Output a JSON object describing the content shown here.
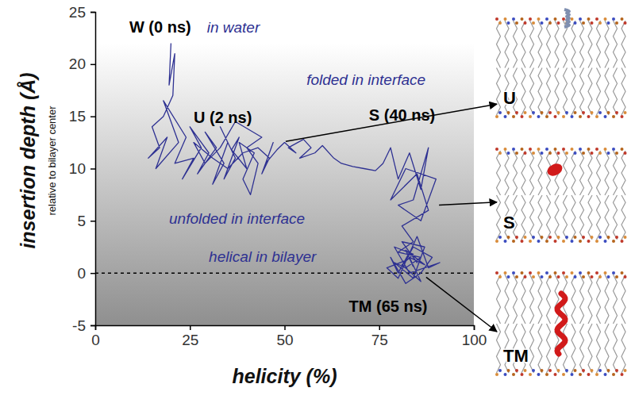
{
  "chart_data": {
    "type": "line",
    "x_label": "helicity (%)",
    "y_label": "insertion depth (Å)",
    "y_sublabel": "relative to bilayer center",
    "xlim": [
      0,
      100
    ],
    "xticks": [
      0,
      25,
      50,
      75,
      100
    ],
    "ylim": [
      -5,
      25
    ],
    "yticks": [
      -5,
      0,
      5,
      10,
      15,
      20,
      25
    ],
    "reference_line": 0,
    "x": [
      20,
      19.5,
      21,
      20.5,
      18,
      15,
      17,
      14,
      19,
      16,
      22,
      18,
      24,
      21,
      26,
      23,
      28,
      25,
      30,
      27,
      32,
      29,
      34,
      31,
      35,
      33,
      37,
      34,
      38,
      36,
      40,
      38,
      42,
      39,
      41,
      43,
      40,
      44,
      37,
      33,
      29,
      26,
      31,
      35,
      39,
      43,
      46,
      44,
      47,
      45,
      48,
      50,
      53,
      51,
      55,
      57,
      54,
      58,
      60,
      63,
      65,
      68,
      71,
      74,
      76,
      78,
      80,
      83,
      86,
      88,
      84,
      80,
      86,
      90,
      82,
      78,
      85,
      88,
      81,
      84,
      80,
      86,
      82,
      79,
      84,
      87,
      81,
      85,
      83,
      80,
      78,
      82,
      86,
      89,
      84,
      82,
      77,
      80,
      85,
      88,
      91,
      83,
      79,
      84,
      81,
      86,
      83,
      87,
      82,
      84
    ],
    "series": [
      {
        "color": "#2e3192",
        "values": [
          22,
          18,
          21,
          17,
          15,
          14,
          12,
          11,
          13,
          10,
          12.5,
          16.5,
          13,
          10.5,
          11,
          9,
          12,
          14,
          11.5,
          9.5,
          12,
          13.5,
          10.5,
          8.5,
          12.5,
          14,
          11,
          9,
          13,
          11.8,
          10,
          12.5,
          11.5,
          9,
          7.5,
          10.5,
          12,
          13,
          14.5,
          12,
          10.5,
          12.5,
          11,
          10,
          11.5,
          12,
          11,
          9.5,
          12.5,
          10.5,
          11.8,
          12.5,
          11.5,
          12,
          12.8,
          12,
          11,
          11.5,
          12.2,
          11,
          10.5,
          10.2,
          10,
          9.8,
          10.5,
          12,
          9,
          11.5,
          8,
          12,
          7,
          6.5,
          5,
          9,
          10,
          7,
          9.5,
          6,
          4.5,
          3,
          2,
          1.5,
          0.5,
          1,
          -0.5,
          2.5,
          3,
          1,
          2,
          0,
          1.5,
          -1,
          0,
          1.5,
          2.5,
          1.2,
          0.5,
          -0.5,
          3.5,
          0.5,
          1,
          0,
          2.5,
          1.8,
          0.8,
          -0.8,
          1.5,
          0.8,
          2.2,
          0.6
        ]
      }
    ],
    "state_labels": [
      {
        "text": "W (0 ns)",
        "x": 9,
        "y": 23
      },
      {
        "text": "U (2 ns)",
        "x": 26,
        "y": 14.4
      },
      {
        "text": "S (40 ns)",
        "x": 72.3,
        "y": 14.6
      },
      {
        "text": "TM (65 ns)",
        "x": 67,
        "y": -3.7
      }
    ],
    "region_labels": [
      {
        "text": "in water",
        "x": 29.5,
        "y": 23
      },
      {
        "text": "folded in interface",
        "x": 55.8,
        "y": 18
      },
      {
        "text": "unfolded in interface",
        "x": 19.5,
        "y": 4.7
      },
      {
        "text": "helical in bilayer",
        "x": 30,
        "y": 1.1
      }
    ],
    "snapshots": [
      {
        "label": "U",
        "from": [
          50.3,
          12.6
        ]
      },
      {
        "label": "S",
        "from": [
          90.8,
          6.5
        ]
      },
      {
        "label": "TM",
        "from": [
          87.4,
          -0.4
        ]
      }
    ]
  }
}
